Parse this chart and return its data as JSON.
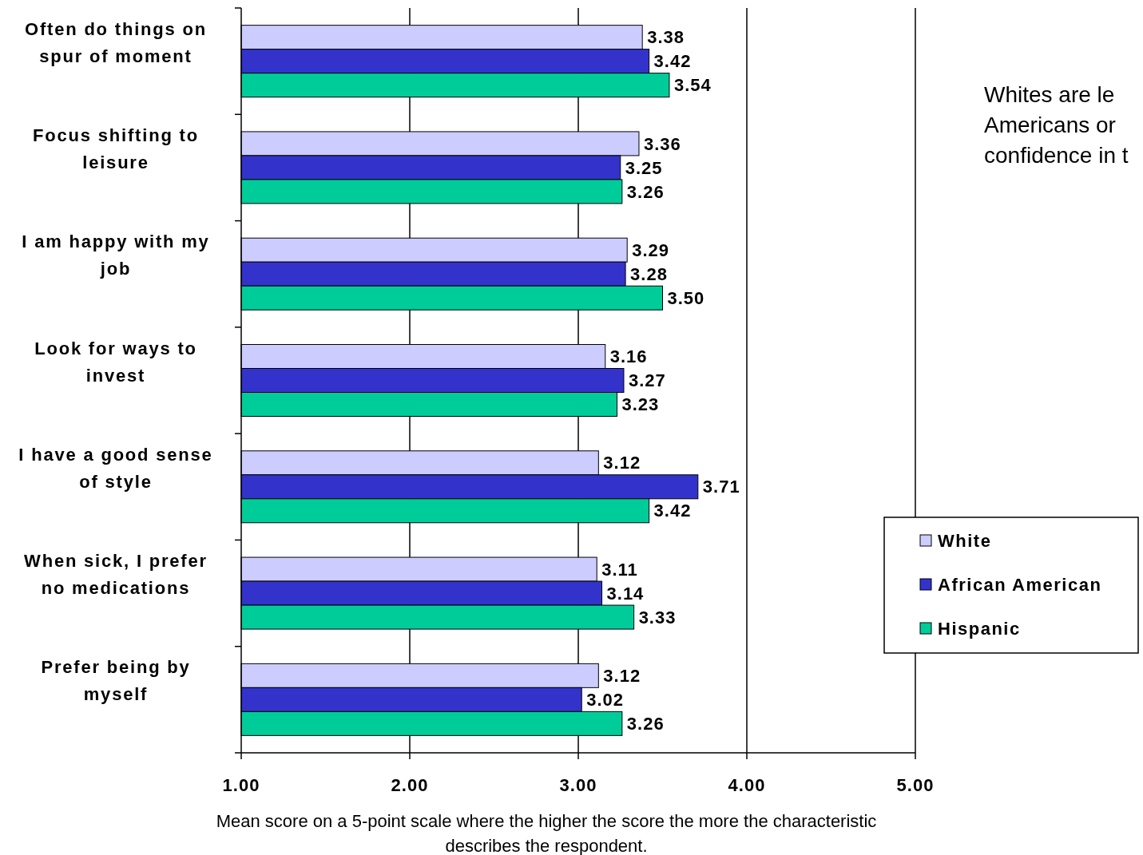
{
  "chart_data": {
    "type": "bar",
    "orientation": "horizontal",
    "xlabel": "Mean score on a 5-point scale where the higher the score the more the characteristic describes the respondent.",
    "categories": [
      "Often do things on spur of moment",
      "Focus shifting to leisure",
      "I am happy with my job",
      "Look for ways to invest",
      "I have a good sense of style",
      "When sick, I prefer no medications",
      "Prefer being by myself"
    ],
    "series": [
      {
        "name": "White",
        "color": "#ccccff",
        "values": [
          3.38,
          3.36,
          3.29,
          3.16,
          3.12,
          3.11,
          3.12
        ],
        "value_labels": [
          "3.38",
          "3.36",
          "3.29",
          "3.16",
          "3.12",
          "3.11",
          "3.12"
        ]
      },
      {
        "name": "African American",
        "color": "#3333cc",
        "values": [
          3.42,
          3.25,
          3.28,
          3.27,
          3.71,
          3.14,
          3.02
        ],
        "value_labels": [
          "3.42",
          "3.25",
          "3.28",
          "3.27",
          "3.71",
          "3.14",
          "3.02"
        ]
      },
      {
        "name": "Hispanic",
        "color": "#00cc99",
        "values": [
          3.54,
          3.26,
          3.5,
          3.23,
          3.42,
          3.33,
          3.26
        ],
        "value_labels": [
          "3.54",
          "3.26",
          "3.50",
          "3.23",
          "3.42",
          "3.33",
          "3.26"
        ]
      }
    ],
    "xlim": [
      1,
      5
    ],
    "xticks": [
      {
        "value": 1,
        "label": "1.00"
      },
      {
        "value": 2,
        "label": "2.00"
      },
      {
        "value": 3,
        "label": "3.00"
      },
      {
        "value": 4,
        "label": "4.00"
      },
      {
        "value": 5,
        "label": "5.00"
      }
    ],
    "grid": "x",
    "legend": "right",
    "annotations": [
      "Whites are le",
      "Americans or",
      "confidence in t"
    ]
  }
}
